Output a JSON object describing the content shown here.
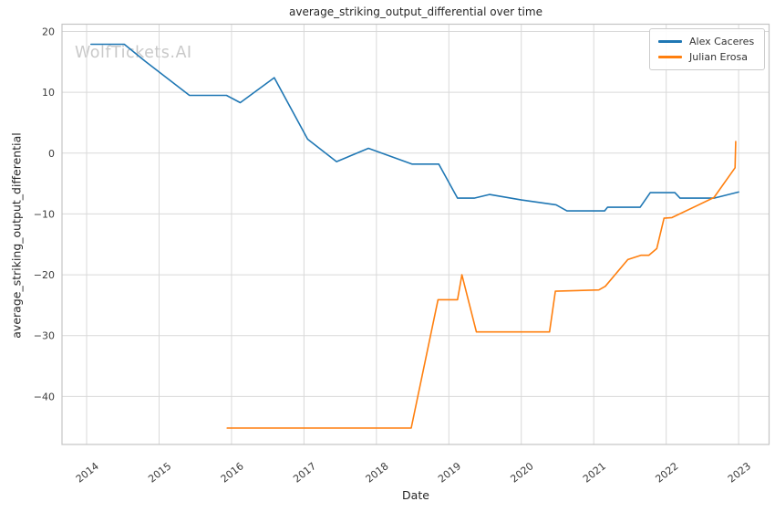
{
  "watermark": "WolfTickets.AI",
  "colors": {
    "background": "#ffffff",
    "grid": "#d9d9d9",
    "spine": "#c4c4c4",
    "text": "#3b3b3b",
    "title": "#262626",
    "watermark": "#c9c9c9",
    "series_blue": "#1f77b4",
    "series_orange": "#ff7f0e"
  },
  "chart_data": {
    "type": "line",
    "title": "average_striking_output_differential over time",
    "xlabel": "Date",
    "ylabel": "average_striking_output_differential",
    "grid": true,
    "legend_position": "upper right",
    "xlim": [
      2013.66,
      2023.42
    ],
    "ylim": [
      -47.9,
      21.2
    ],
    "x_ticks": [
      2014,
      2015,
      2016,
      2017,
      2018,
      2019,
      2020,
      2021,
      2022,
      2023
    ],
    "y_ticks": [
      20,
      10,
      0,
      -10,
      -20,
      -30,
      -40
    ],
    "series": [
      {
        "name": "Alex Caceres",
        "color": "#1f77b4",
        "points": [
          [
            2014.06,
            17.9
          ],
          [
            2014.52,
            17.9
          ],
          [
            2014.81,
            15.1
          ],
          [
            2015.42,
            9.5
          ],
          [
            2015.93,
            9.5
          ],
          [
            2016.12,
            8.3
          ],
          [
            2016.59,
            12.4
          ],
          [
            2017.05,
            2.3
          ],
          [
            2017.45,
            -1.4
          ],
          [
            2017.89,
            0.8
          ],
          [
            2018.49,
            -1.8
          ],
          [
            2018.86,
            -1.8
          ],
          [
            2019.12,
            -7.4
          ],
          [
            2019.35,
            -7.4
          ],
          [
            2019.56,
            -6.8
          ],
          [
            2020.0,
            -7.7
          ],
          [
            2020.48,
            -8.5
          ],
          [
            2020.63,
            -9.5
          ],
          [
            2021.15,
            -9.5
          ],
          [
            2021.19,
            -8.9
          ],
          [
            2021.64,
            -8.9
          ],
          [
            2021.78,
            -6.5
          ],
          [
            2022.12,
            -6.5
          ],
          [
            2022.19,
            -7.4
          ],
          [
            2022.66,
            -7.4
          ],
          [
            2023.0,
            -6.4
          ]
        ]
      },
      {
        "name": "Julian Erosa",
        "color": "#ff7f0e",
        "points": [
          [
            2015.94,
            -45.2
          ],
          [
            2018.48,
            -45.2
          ],
          [
            2018.85,
            -24.1
          ],
          [
            2019.12,
            -24.1
          ],
          [
            2019.18,
            -20.0
          ],
          [
            2019.38,
            -29.4
          ],
          [
            2020.39,
            -29.4
          ],
          [
            2020.47,
            -22.7
          ],
          [
            2021.07,
            -22.5
          ],
          [
            2021.16,
            -21.9
          ],
          [
            2021.47,
            -17.5
          ],
          [
            2021.65,
            -16.8
          ],
          [
            2021.76,
            -16.8
          ],
          [
            2021.87,
            -15.7
          ],
          [
            2021.97,
            -10.7
          ],
          [
            2022.08,
            -10.6
          ],
          [
            2022.66,
            -7.3
          ],
          [
            2022.95,
            -2.4
          ],
          [
            2022.96,
            1.9
          ]
        ]
      }
    ]
  }
}
